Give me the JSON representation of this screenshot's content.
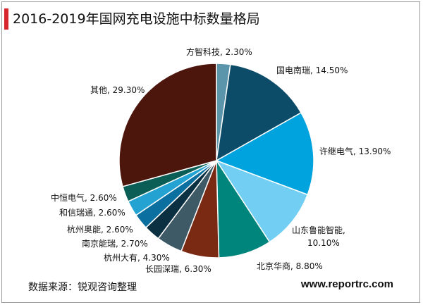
{
  "title": "2016-2019年国网充电设施中标数量格局",
  "source": "数据来源：锐观咨询整理",
  "watermark": "www.reportrc.com",
  "chart_data": {
    "type": "pie",
    "title": "2016-2019年国网充电设施中标数量格局",
    "slices": [
      {
        "name": "方智科技",
        "value": 2.3,
        "label": "方智科技, 2.30%",
        "color": "#5b95ab"
      },
      {
        "name": "国电南瑞",
        "value": 14.5,
        "label": "国电南瑞, 14.50%",
        "color": "#0d4c69"
      },
      {
        "name": "许继电气",
        "value": 13.9,
        "label": "许继电气, 13.90%",
        "color": "#00a3dd"
      },
      {
        "name": "山东鲁能智能",
        "value": 10.1,
        "label": [
          "山东鲁能智能,",
          "10.10%"
        ],
        "color": "#72cff3"
      },
      {
        "name": "北京华商",
        "value": 8.8,
        "label": "北京华商, 8.80%",
        "color": "#00857c"
      },
      {
        "name": "长园深瑞",
        "value": 6.3,
        "label": "长园深瑞, 6.30%",
        "color": "#7a2913"
      },
      {
        "name": "杭州大有",
        "value": 4.3,
        "label": "杭州大有, 4.30%",
        "color": "#3e5a66"
      },
      {
        "name": "南京能瑞",
        "value": 2.7,
        "label": "南京能瑞, 2.70%",
        "color": "#0a3042"
      },
      {
        "name": "杭州奥能",
        "value": 2.6,
        "label": "杭州奥能, 2.60%",
        "color": "#0b6f9f"
      },
      {
        "name": "和信瑞通",
        "value": 2.6,
        "label": "和信瑞通, 2.60%",
        "color": "#24a3d2"
      },
      {
        "name": "中恒电气",
        "value": 2.6,
        "label": "中恒电气, 2.60%",
        "color": "#0a5e56"
      },
      {
        "name": "其他",
        "value": 29.3,
        "label": "其他, 29.30%",
        "color": "#4d160d"
      }
    ]
  }
}
